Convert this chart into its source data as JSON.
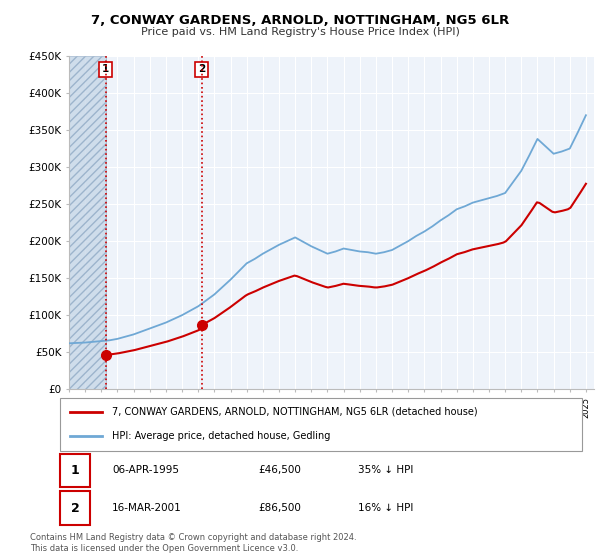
{
  "title": "7, CONWAY GARDENS, ARNOLD, NOTTINGHAM, NG5 6LR",
  "subtitle": "Price paid vs. HM Land Registry's House Price Index (HPI)",
  "legend_line1": "7, CONWAY GARDENS, ARNOLD, NOTTINGHAM, NG5 6LR (detached house)",
  "legend_line2": "HPI: Average price, detached house, Gedling",
  "footnote": "Contains HM Land Registry data © Crown copyright and database right 2024.\nThis data is licensed under the Open Government Licence v3.0.",
  "transactions": [
    {
      "label": "1",
      "date": "06-APR-1995",
      "price": 46500,
      "pct": "35%",
      "dir": "↓",
      "x_year": 1995.27
    },
    {
      "label": "2",
      "date": "16-MAR-2001",
      "price": 86500,
      "pct": "16%",
      "dir": "↓",
      "x_year": 2001.21
    }
  ],
  "xlim": [
    1993.0,
    2025.5
  ],
  "ylim": [
    0,
    450000
  ],
  "yticks": [
    0,
    50000,
    100000,
    150000,
    200000,
    250000,
    300000,
    350000,
    400000,
    450000
  ],
  "ytick_labels": [
    "£0",
    "£50K",
    "£100K",
    "£150K",
    "£200K",
    "£250K",
    "£300K",
    "£350K",
    "£400K",
    "£450K"
  ],
  "hpi_color": "#6fa8d5",
  "price_color": "#cc0000",
  "marker_color": "#cc0000",
  "vline_color": "#cc0000",
  "hatch_color": "#c8d8e8",
  "plot_bg": "#eef3fa",
  "hpi_years": [
    1993,
    1993.5,
    1994,
    1994.5,
    1995,
    1995.5,
    1996,
    1996.5,
    1997,
    1997.5,
    1998,
    1998.5,
    1999,
    1999.5,
    2000,
    2000.5,
    2001,
    2001.5,
    2002,
    2002.5,
    2003,
    2003.5,
    2004,
    2004.5,
    2005,
    2005.5,
    2006,
    2006.5,
    2007,
    2007.5,
    2008,
    2008.5,
    2009,
    2009.5,
    2010,
    2010.5,
    2011,
    2011.5,
    2012,
    2012.5,
    2013,
    2013.5,
    2014,
    2014.5,
    2015,
    2015.5,
    2016,
    2016.5,
    2017,
    2017.5,
    2018,
    2018.5,
    2019,
    2019.5,
    2020,
    2020.5,
    2021,
    2021.5,
    2022,
    2022.5,
    2023,
    2023.5,
    2024,
    2024.5,
    2025
  ],
  "hpi_values": [
    62000,
    62500,
    63000,
    64000,
    65000,
    66000,
    68000,
    71000,
    74000,
    78000,
    82000,
    86000,
    90000,
    95000,
    100000,
    106000,
    112000,
    120000,
    128000,
    138000,
    148000,
    159000,
    170000,
    176000,
    183000,
    189000,
    195000,
    200000,
    205000,
    199000,
    193000,
    188000,
    183000,
    186000,
    190000,
    188000,
    186000,
    185000,
    183000,
    185000,
    188000,
    194000,
    200000,
    207000,
    213000,
    220000,
    228000,
    235000,
    243000,
    247000,
    252000,
    255000,
    258000,
    261000,
    265000,
    280000,
    295000,
    316000,
    338000,
    328000,
    318000,
    321000,
    325000,
    347000,
    370000
  ]
}
